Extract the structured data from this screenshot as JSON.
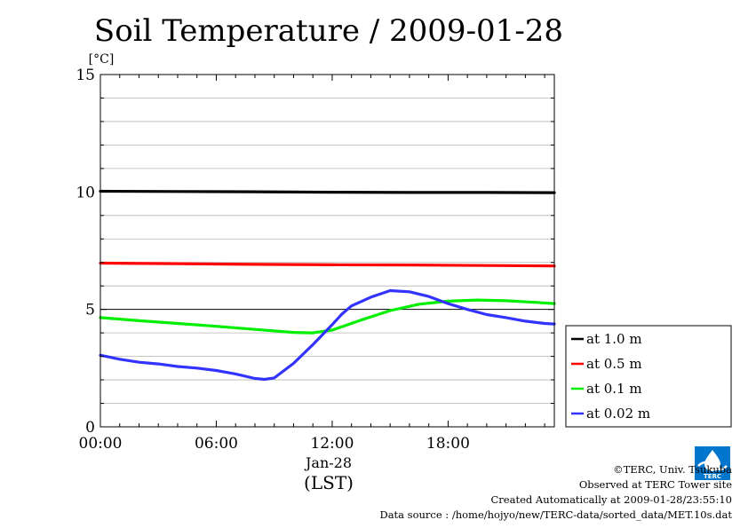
{
  "chart_data": {
    "type": "line",
    "title": "Soil Temperature / 2009-01-28",
    "yunit": "[°C]",
    "xlabel": "(LST)",
    "xdate": "Jan-28",
    "ylim": [
      0,
      15
    ],
    "xlim_hours": [
      0,
      23.5
    ],
    "yticks": [
      {
        "value": 0,
        "label": "0"
      },
      {
        "value": 5,
        "label": "5"
      },
      {
        "value": 10,
        "label": "10"
      },
      {
        "value": 15,
        "label": "15"
      }
    ],
    "xticks": [
      {
        "hour": 0,
        "label": "00:00"
      },
      {
        "hour": 6,
        "label": "06:00"
      },
      {
        "hour": 12,
        "label": "12:00"
      },
      {
        "hour": 18,
        "label": "18:00"
      }
    ],
    "grid": true,
    "legend_position": "right-bottom",
    "series": [
      {
        "name": "at 1.0 m",
        "color": "#000000",
        "points": [
          [
            0,
            10.03
          ],
          [
            4,
            10.02
          ],
          [
            8,
            10.01
          ],
          [
            12,
            9.99
          ],
          [
            16,
            9.98
          ],
          [
            20,
            9.98
          ],
          [
            23.5,
            9.97
          ]
        ]
      },
      {
        "name": "at 0.5 m",
        "color": "#ff0000",
        "points": [
          [
            0,
            6.97
          ],
          [
            4,
            6.95
          ],
          [
            8,
            6.92
          ],
          [
            12,
            6.9
          ],
          [
            16,
            6.89
          ],
          [
            20,
            6.87
          ],
          [
            23.5,
            6.85
          ]
        ]
      },
      {
        "name": "at 0.1 m",
        "color": "#00ee00",
        "points": [
          [
            0,
            4.65
          ],
          [
            2,
            4.52
          ],
          [
            4,
            4.4
          ],
          [
            6,
            4.28
          ],
          [
            8,
            4.15
          ],
          [
            10,
            4.02
          ],
          [
            11,
            4.0
          ],
          [
            12,
            4.12
          ],
          [
            13.5,
            4.55
          ],
          [
            15,
            4.95
          ],
          [
            16.5,
            5.22
          ],
          [
            18,
            5.35
          ],
          [
            19.5,
            5.4
          ],
          [
            21,
            5.37
          ],
          [
            22.5,
            5.3
          ],
          [
            23.5,
            5.25
          ]
        ]
      },
      {
        "name": "at 0.02 m",
        "color": "#3333ff",
        "points": [
          [
            0,
            3.05
          ],
          [
            1,
            2.88
          ],
          [
            2,
            2.75
          ],
          [
            3,
            2.68
          ],
          [
            4,
            2.57
          ],
          [
            5,
            2.5
          ],
          [
            6,
            2.4
          ],
          [
            7,
            2.25
          ],
          [
            8,
            2.06
          ],
          [
            8.5,
            2.02
          ],
          [
            9,
            2.08
          ],
          [
            10,
            2.7
          ],
          [
            11,
            3.5
          ],
          [
            12,
            4.35
          ],
          [
            12.5,
            4.8
          ],
          [
            13,
            5.15
          ],
          [
            14,
            5.52
          ],
          [
            15,
            5.8
          ],
          [
            16,
            5.75
          ],
          [
            17,
            5.55
          ],
          [
            18,
            5.25
          ],
          [
            19,
            5.0
          ],
          [
            20,
            4.78
          ],
          [
            21,
            4.65
          ],
          [
            22,
            4.5
          ],
          [
            23,
            4.4
          ],
          [
            23.5,
            4.38
          ]
        ]
      }
    ]
  },
  "footer": {
    "copyright": "©TERC, Univ. Tsukuba",
    "observed": "Observed at TERC Tower site",
    "created": "Created Automatically at 2009-01-28/23:55:10",
    "source": "Data source : /home/hojyo/new/TERC-data/sorted_data/MET.10s.dat"
  },
  "logo": {
    "text": "TERC",
    "color": "#0077cc"
  }
}
